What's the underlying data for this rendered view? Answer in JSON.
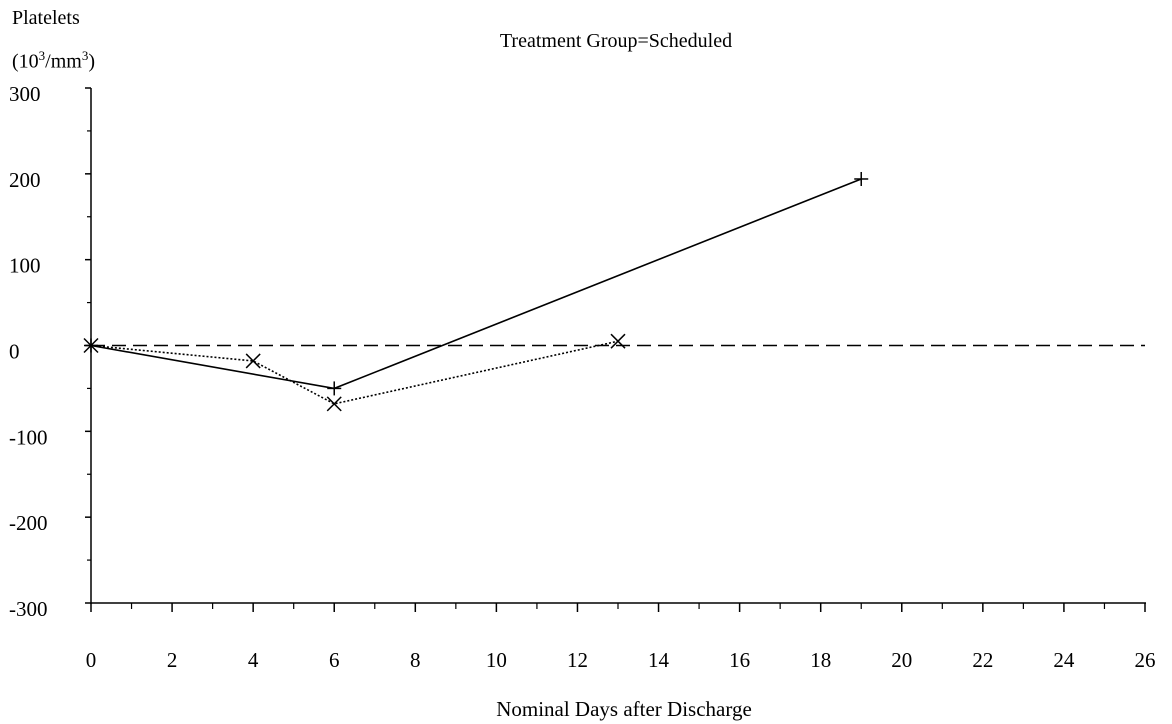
{
  "chart_data": {
    "type": "line",
    "title": "Treatment Group=Scheduled",
    "ylabel_line1": "Platelets",
    "ylabel_unit_prefix": "(10",
    "ylabel_unit_exp1": "3",
    "ylabel_unit_mid": "/mm",
    "ylabel_unit_exp2": "3",
    "ylabel_unit_suffix": ")",
    "xlabel": "Nominal Days after Discharge",
    "xlim": [
      0,
      26
    ],
    "ylim": [
      -300,
      300
    ],
    "xticks": [
      0,
      2,
      4,
      6,
      8,
      10,
      12,
      14,
      16,
      18,
      20,
      22,
      24,
      26
    ],
    "yticks": [
      300,
      200,
      100,
      0,
      -100,
      -200,
      -300
    ],
    "reference_line": {
      "y": 0,
      "style": "dashed"
    },
    "series": [
      {
        "marker": "plus",
        "line_style": "solid",
        "points": [
          {
            "x": 0,
            "y": 0
          },
          {
            "x": 6,
            "y": -50
          },
          {
            "x": 19,
            "y": 194
          }
        ]
      },
      {
        "marker": "x",
        "line_style": "dotted",
        "points": [
          {
            "x": 0,
            "y": 0
          },
          {
            "x": 4,
            "y": -18
          },
          {
            "x": 6,
            "y": -68
          },
          {
            "x": 13,
            "y": 5
          }
        ]
      }
    ]
  }
}
